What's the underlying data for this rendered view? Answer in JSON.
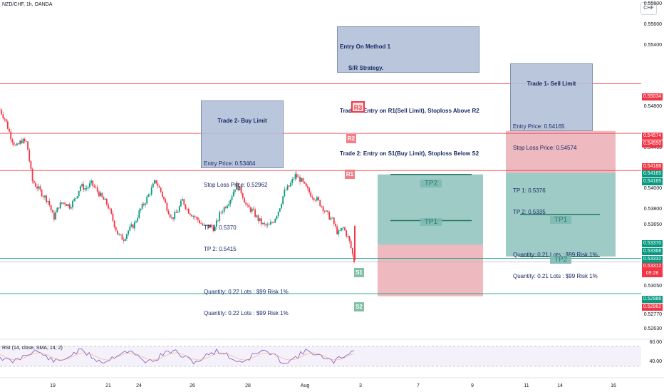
{
  "header": {
    "symbol": "NZD/CHF, 1h, OANDA",
    "currency": "CHF"
  },
  "notes": {
    "method": {
      "title": "Entry On Method 1",
      "subtitle": "S/R Strategy.",
      "line1": "Trade 1: Entry on R1(Sell Limit), Stoploss Above R2",
      "line2": "Trade 2: Entry on S1(Buy Limit), Stoploss Below S2"
    },
    "trade2": {
      "title": "Trade 2- Buy Limit",
      "entry": "Entry Price: 0.53464",
      "stop": "Stop Loss Price: 0.52962",
      "tp1": "TP 1: 0.5370",
      "tp2": "TP 2: 0.5415",
      "qty1": "Quantity: 0.22 Lots : $99 Risk 1%",
      "qty2": "Quantity: 0.22 Lots : $99 Risk 1%"
    },
    "trade1": {
      "title": "Trade 1- Sell Limit",
      "entry": "Entry Price: 0.54165",
      "stop": "Stop Loss Price: 0.54574",
      "tp1": "TP 1: 0.5376",
      "tp2": "TP 2: 0.5335",
      "qty1": "Quantity: 0.21 Lots : $99 Risk 1%",
      "qty2": "Quantity: 0.21 Lots : $99 Risk 1%"
    }
  },
  "levels": {
    "r3": "R3",
    "r2": "R2",
    "r1": "R1",
    "s1": "S1",
    "s2": "S2",
    "tp1": "TP1",
    "tp2": "TP2"
  },
  "rsi": {
    "label": "RSI (14, close, SMA, 14, 2)",
    "ticks": [
      "60.00",
      "40.00"
    ]
  },
  "chart_data": {
    "type": "candlestick",
    "symbol": "NZD/CHF",
    "timeframe": "1h",
    "y_range": [
      0.5255,
      0.5585
    ],
    "x_labels": [
      "19",
      "21",
      "24",
      "26",
      "28",
      "Aug",
      "3",
      "7",
      "9",
      "11",
      "14",
      "16"
    ],
    "price_ticks": [
      "0.55800",
      "0.55600",
      "0.55400",
      "0.54800",
      "0.54400",
      "0.54000",
      "0.53800",
      "0.53650",
      "0.53050",
      "0.52770",
      "0.52630"
    ],
    "price_boxes": [
      {
        "label": "0.55034",
        "value": 0.55034,
        "color": "#f23645"
      },
      {
        "label": "0.54574",
        "value": 0.54574,
        "color": "#f23645"
      },
      {
        "label": "0.54550",
        "value": 0.5455,
        "color": "#f23645"
      },
      {
        "label": "0.54188",
        "value": 0.54188,
        "color": "#f23645"
      },
      {
        "label": "0.54165",
        "value": 0.54165,
        "color": "#089981"
      },
      {
        "label": "0.54165",
        "value": 0.54165,
        "color": "#089981"
      },
      {
        "label": "0.53370",
        "value": 0.5337,
        "color": "#089981"
      },
      {
        "label": "0.53368",
        "value": 0.53368,
        "color": "#089981"
      },
      {
        "label": "0.53332",
        "value": 0.53332,
        "color": "#089981"
      },
      {
        "label": "0.53312",
        "value": 0.53312,
        "color": "#f23645"
      },
      {
        "label": "09:28",
        "value": 0.53312,
        "color": "#f23645"
      },
      {
        "label": "0.52988",
        "value": 0.52988,
        "color": "#089981"
      },
      {
        "label": "0.52962",
        "value": 0.52962,
        "color": "#f23645"
      }
    ],
    "horizontal_lines": [
      {
        "name": "R3",
        "value": 0.55034,
        "color": "#f23645"
      },
      {
        "name": "R2",
        "value": 0.5455,
        "color": "#f23645"
      },
      {
        "name": "R1",
        "value": 0.54188,
        "color": "#f23645"
      },
      {
        "name": "S1",
        "value": 0.53332,
        "color": "#089981"
      },
      {
        "name": "S2",
        "value": 0.52988,
        "color": "#089981"
      }
    ],
    "positions": [
      {
        "side": "long",
        "entry": 0.53464,
        "stop": 0.52962,
        "target": 0.5415,
        "tp1": 0.537
      },
      {
        "side": "short",
        "entry": 0.54165,
        "stop": 0.54574,
        "target": 0.5335,
        "tp1": 0.5376
      }
    ],
    "close_path": [
      0.5478,
      0.5468,
      0.5452,
      0.5441,
      0.5448,
      0.5446,
      0.5409,
      0.5402,
      0.5395,
      0.5389,
      0.5372,
      0.5385,
      0.5388,
      0.5384,
      0.5391,
      0.5404,
      0.5401,
      0.5406,
      0.54,
      0.5392,
      0.5386,
      0.5371,
      0.5356,
      0.5352,
      0.5361,
      0.5366,
      0.5379,
      0.5388,
      0.5398,
      0.5409,
      0.5398,
      0.5384,
      0.5372,
      0.5378,
      0.539,
      0.538,
      0.5375,
      0.537,
      0.5364,
      0.5365,
      0.5362,
      0.5377,
      0.5384,
      0.5392,
      0.5405,
      0.5398,
      0.5383,
      0.538,
      0.5372,
      0.5366,
      0.5364,
      0.537,
      0.5381,
      0.5398,
      0.5404,
      0.5414,
      0.541,
      0.5402,
      0.5395,
      0.5391,
      0.5384,
      0.5376,
      0.537,
      0.5357,
      0.5363,
      0.5352,
      0.5331
    ],
    "colors": {
      "up": "#089981",
      "down": "#f23645",
      "long_profit": "#7db9b3",
      "long_loss": "#e8a1a9",
      "short_loss": "#e8a1a9",
      "short_profit": "#7db9b3"
    }
  }
}
